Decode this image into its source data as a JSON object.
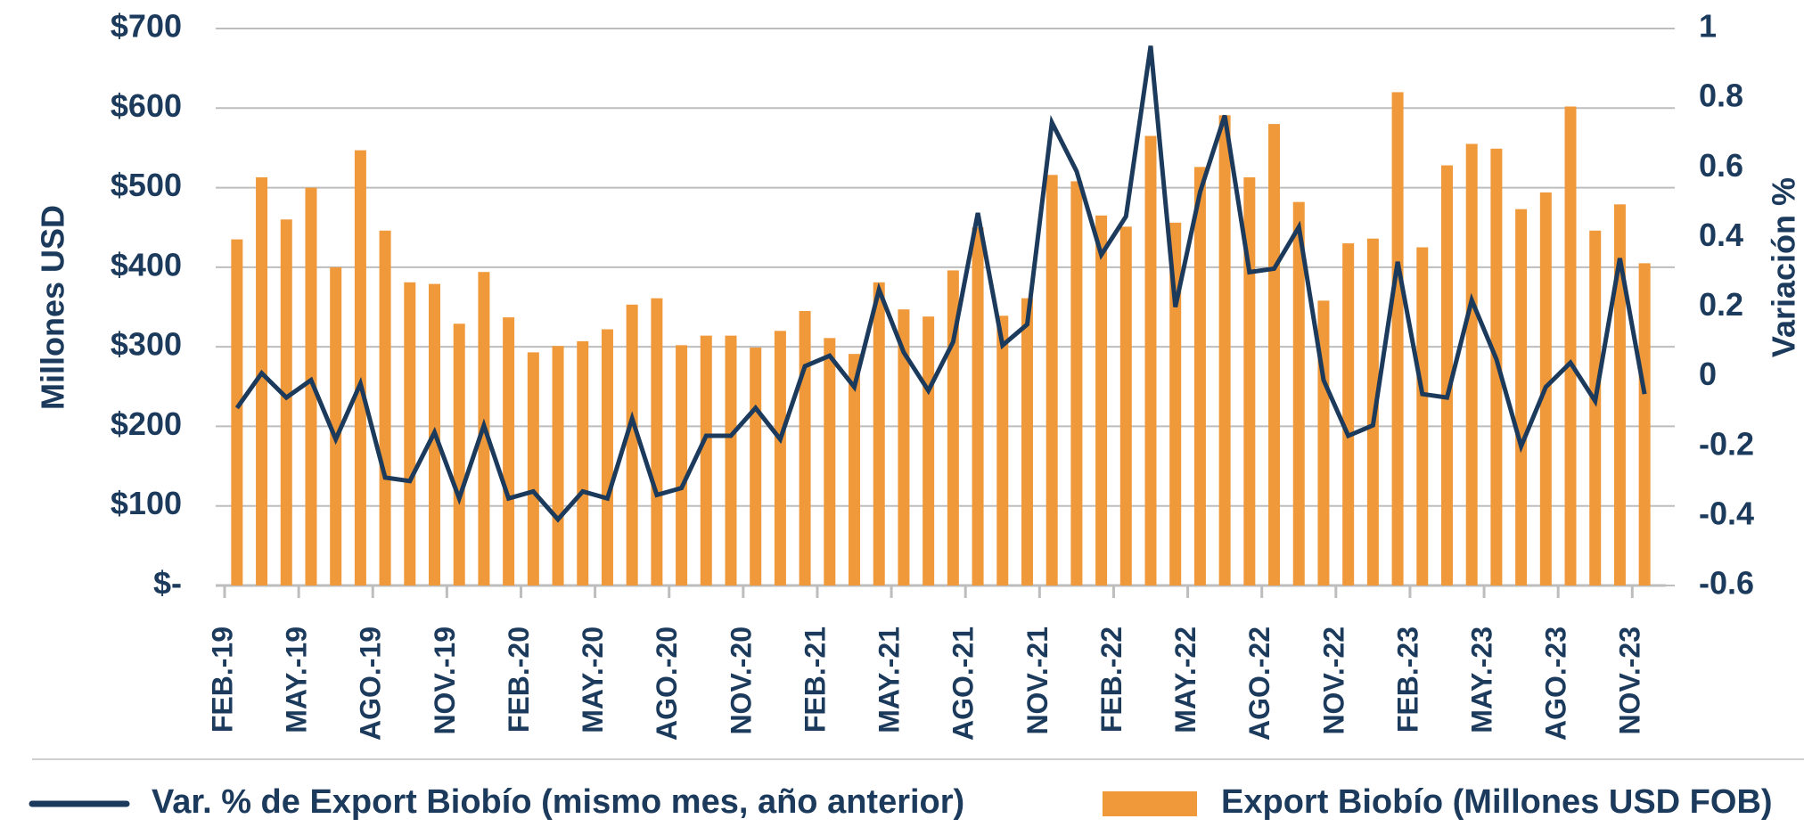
{
  "chart_data": {
    "type": "bar_line",
    "y_label": "Millones USD",
    "y2_label": "Variación %",
    "categories": [
      "FEB.-19",
      null,
      null,
      "MAY.-19",
      null,
      null,
      "AGO.-19",
      null,
      null,
      "NOV.-19",
      null,
      null,
      "FEB.-20",
      null,
      null,
      "MAY.-20",
      null,
      null,
      "AGO.-20",
      null,
      null,
      "NOV.-20",
      null,
      null,
      "FEB.-21",
      null,
      null,
      "MAY.-21",
      null,
      null,
      "AGO.-21",
      null,
      null,
      "NOV.-21",
      null,
      null,
      "FEB.-22",
      null,
      null,
      "MAY.-22",
      null,
      null,
      "AGO.-22",
      null,
      null,
      "NOV.-22",
      null,
      null,
      "FEB.-23",
      null,
      null,
      "MAY.-23",
      null,
      null,
      "AGO.-23",
      null,
      null,
      "NOV.-23"
    ],
    "series": [
      {
        "name": "Export Biobío (Millones USD FOB)",
        "type": "bar",
        "color": "#f0993a",
        "values": [
          435,
          513,
          460,
          500,
          400,
          547,
          446,
          381,
          379,
          329,
          394,
          337,
          293,
          301,
          307,
          322,
          353,
          361,
          302,
          314,
          314,
          299,
          320,
          345,
          311,
          291,
          381,
          347,
          338,
          396,
          450,
          339,
          361,
          516,
          508,
          465,
          451,
          565,
          456,
          526,
          591,
          513,
          580,
          482,
          358,
          430,
          436,
          620,
          425,
          528,
          555,
          549,
          473,
          494,
          602,
          446,
          479,
          405
        ]
      },
      {
        "name": "Var. % de Export Biobío (mismo mes, año anterior)",
        "type": "line",
        "axis": "y2",
        "color": "#1b3a5c",
        "values": [
          -0.09,
          0.01,
          -0.06,
          -0.01,
          -0.18,
          -0.02,
          -0.29,
          -0.3,
          -0.16,
          -0.35,
          -0.14,
          -0.35,
          -0.33,
          -0.41,
          -0.33,
          -0.35,
          -0.12,
          -0.34,
          -0.32,
          -0.17,
          -0.17,
          -0.09,
          -0.18,
          0.03,
          0.06,
          -0.03,
          0.25,
          0.07,
          -0.04,
          0.1,
          0.47,
          0.09,
          0.15,
          0.73,
          0.59,
          0.35,
          0.46,
          0.95,
          0.2,
          0.53,
          0.75,
          0.3,
          0.31,
          0.43,
          -0.01,
          -0.17,
          -0.14,
          0.33,
          -0.05,
          -0.06,
          0.22,
          0.05,
          -0.2,
          -0.03,
          0.04,
          -0.07,
          0.34,
          -0.05
        ]
      }
    ],
    "ylim": [
      0,
      700
    ],
    "yticks": [
      {
        "value": 0,
        "label": "$-"
      },
      {
        "value": 100,
        "label": "$100"
      },
      {
        "value": 200,
        "label": "$200"
      },
      {
        "value": 300,
        "label": "$300"
      },
      {
        "value": 400,
        "label": "$400"
      },
      {
        "value": 500,
        "label": "$500"
      },
      {
        "value": 600,
        "label": "$600"
      },
      {
        "value": 700,
        "label": "$700"
      }
    ],
    "y2lim": [
      -0.6,
      1
    ],
    "y2ticks": [
      -0.6,
      -0.4,
      -0.2,
      0,
      0.2,
      0.4,
      0.6,
      0.8,
      1
    ],
    "grid": true,
    "legend": "bottom"
  }
}
